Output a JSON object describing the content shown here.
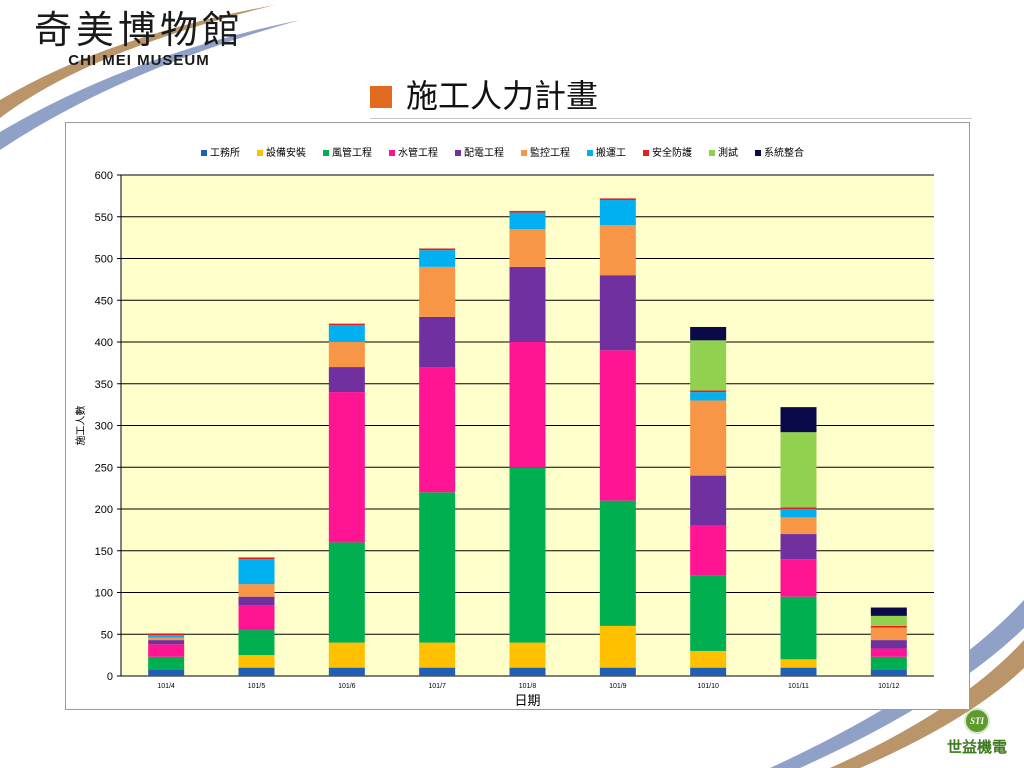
{
  "header": {
    "logo_cn": "奇美博物館",
    "logo_en": "CHI MEI MUSEUM",
    "title": "施工人力計畫"
  },
  "footer": {
    "company_badge": "STI",
    "company_name": "世益機電"
  },
  "colors": {
    "title_square": "#e06a1d",
    "plot_bg": "#ffffcc",
    "swoosh_brown": "#b38a5a",
    "swoosh_blue": "#7d90bd"
  },
  "chart_data": {
    "type": "bar",
    "stacked": true,
    "title": "",
    "xlabel": "日期",
    "ylabel": "施工人數",
    "ylim": [
      0,
      600
    ],
    "yticks": [
      0,
      50,
      100,
      150,
      200,
      250,
      300,
      350,
      400,
      450,
      500,
      550,
      600
    ],
    "grid": true,
    "legend_position": "top",
    "categories": [
      "101/4",
      "101/5",
      "101/6",
      "101/7",
      "101/8",
      "101/9",
      "101/10",
      "101/11",
      "101/12"
    ],
    "series": [
      {
        "name": "工務所",
        "color": "#1f5fb4",
        "values": [
          8,
          10,
          10,
          10,
          10,
          10,
          10,
          10,
          8
        ]
      },
      {
        "name": "設備安裝",
        "color": "#ffc000",
        "values": [
          0,
          15,
          30,
          30,
          30,
          50,
          20,
          10,
          0
        ]
      },
      {
        "name": "風管工程",
        "color": "#00b050",
        "values": [
          15,
          30,
          120,
          180,
          210,
          150,
          90,
          75,
          15
        ]
      },
      {
        "name": "水管工程",
        "color": "#ff1493",
        "values": [
          15,
          30,
          180,
          150,
          150,
          180,
          60,
          45,
          10
        ]
      },
      {
        "name": "配電工程",
        "color": "#7030a0",
        "values": [
          5,
          10,
          30,
          60,
          90,
          90,
          60,
          30,
          10
        ]
      },
      {
        "name": "監控工程",
        "color": "#f79646",
        "values": [
          3,
          15,
          30,
          60,
          45,
          60,
          90,
          20,
          15
        ]
      },
      {
        "name": "搬運工",
        "color": "#00b0f0",
        "values": [
          3,
          30,
          20,
          20,
          20,
          30,
          10,
          10,
          0
        ]
      },
      {
        "name": "安全防護",
        "color": "#e81e1e",
        "values": [
          2,
          2,
          2,
          2,
          2,
          2,
          2,
          2,
          2
        ]
      },
      {
        "name": "測試",
        "color": "#92d050",
        "values": [
          0,
          0,
          0,
          0,
          0,
          0,
          60,
          90,
          12
        ]
      },
      {
        "name": "系統整合",
        "color": "#0a0a4a",
        "values": [
          0,
          0,
          0,
          0,
          0,
          0,
          16,
          30,
          10
        ]
      }
    ]
  }
}
